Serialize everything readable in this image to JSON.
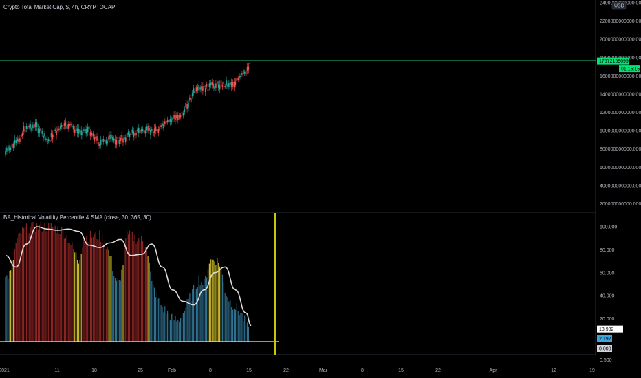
{
  "price_pane": {
    "title": "Crypto Total Market Cap, $, 4h, CRYPTOCAP",
    "currency_badge": "USD",
    "last_price_label": "1767215969967.181",
    "countdown_label": "01:15:15",
    "colors": {
      "up": "#26a69a",
      "down": "#ef5350",
      "price_line": "#26c281",
      "tag": "#00e676"
    }
  },
  "indicator_pane": {
    "title": "BA_Historical Volatility Percentile & SMA (close, 30, 365, 30)",
    "sma_value_label": "13.982",
    "hvp_value_label": "2.192",
    "zero_label": "0.000",
    "colors": {
      "sma": "#e0dcdc",
      "low": "#2f6f8f",
      "mid": "#c8b828",
      "high": "#8b2323",
      "cursor": "#c8c800"
    }
  },
  "time_axis": {
    "labels": [
      "2021",
      "11",
      "18",
      "25",
      "Feb",
      "8",
      "15",
      "22",
      "Mar",
      "8",
      "15",
      "22",
      "Apr",
      "12",
      "19"
    ]
  },
  "chart_data": [
    {
      "type": "line",
      "series": [
        {
          "x": [
            "2021-01-04",
            "2021-01-06",
            "2021-01-08",
            "2021-01-10",
            "2021-01-12",
            "2021-01-14",
            "2021-01-16",
            "2021-01-18",
            "2021-01-20",
            "2021-01-22",
            "2021-01-24",
            "2021-01-26",
            "2021-01-28",
            "2021-01-30",
            "2021-02-01",
            "2021-02-03",
            "2021-02-05",
            "2021-02-07",
            "2021-02-09",
            "2021-02-11",
            "2021-02-13",
            "2021-02-15",
            "2021-02-17",
            "2021-02-19",
            "2021-02-20"
          ],
          "values": [
            760000000000,
            860000000000,
            1040000000000,
            1050000000000,
            880000000000,
            1010000000000,
            1060000000000,
            990000000000,
            1010000000000,
            860000000000,
            910000000000,
            890000000000,
            970000000000,
            1000000000000,
            990000000000,
            1040000000000,
            1130000000000,
            1190000000000,
            1420000000000,
            1460000000000,
            1500000000000,
            1510000000000,
            1520000000000,
            1650000000000,
            1767215969967
          ]
        }
      ],
      "y_ticks": [
        "200000000000.000",
        "400000000000.000",
        "600000000000.000",
        "800000000000.000",
        "1000000000000.000",
        "1200000000000.000",
        "1400000000000.000",
        "1600000000000.000",
        "1800000000000.000",
        "2000000000000.000",
        "2200000000000.000",
        "2400000000000.000"
      ],
      "ylim": [
        0,
        2400000000000
      ]
    },
    {
      "type": "bar",
      "series": [
        {
          "x": [
            "2021-01-04",
            "2021-01-05",
            "2021-01-06",
            "2021-01-07",
            "2021-01-08",
            "2021-01-09",
            "2021-01-10",
            "2021-01-11",
            "2021-01-12",
            "2021-01-13",
            "2021-01-14",
            "2021-01-15",
            "2021-01-16",
            "2021-01-17",
            "2021-01-18",
            "2021-01-19",
            "2021-01-20",
            "2021-01-21",
            "2021-01-22",
            "2021-01-23",
            "2021-01-24",
            "2021-01-25",
            "2021-01-26",
            "2021-01-27",
            "2021-01-28",
            "2021-01-29",
            "2021-01-30",
            "2021-01-31",
            "2021-02-01",
            "2021-02-02",
            "2021-02-03",
            "2021-02-04",
            "2021-02-05",
            "2021-02-06",
            "2021-02-07",
            "2021-02-08",
            "2021-02-09",
            "2021-02-10",
            "2021-02-11",
            "2021-02-12",
            "2021-02-13",
            "2021-02-14",
            "2021-02-15",
            "2021-02-16",
            "2021-02-17",
            "2021-02-18",
            "2021-02-19",
            "2021-02-20"
          ],
          "values": [
            55,
            60,
            85,
            95,
            98,
            99,
            100,
            100,
            100,
            100,
            98,
            96,
            90,
            80,
            70,
            90,
            92,
            92,
            92,
            88,
            75,
            55,
            50,
            92,
            92,
            90,
            88,
            85,
            50,
            40,
            30,
            25,
            20,
            18,
            25,
            35,
            45,
            55,
            50,
            70,
            72,
            68,
            45,
            35,
            30,
            25,
            15,
            2.192
          ]
        },
        {
          "x": [
            "2021-01-04",
            "2021-01-06",
            "2021-01-08",
            "2021-01-10",
            "2021-01-12",
            "2021-01-14",
            "2021-01-16",
            "2021-01-18",
            "2021-01-20",
            "2021-01-22",
            "2021-01-24",
            "2021-01-26",
            "2021-01-28",
            "2021-01-30",
            "2021-02-01",
            "2021-02-03",
            "2021-02-05",
            "2021-02-07",
            "2021-02-09",
            "2021-02-11",
            "2021-02-13",
            "2021-02-15",
            "2021-02-17",
            "2021-02-19",
            "2021-02-20"
          ],
          "values": [
            75,
            65,
            85,
            100,
            98,
            97,
            98,
            96,
            84,
            82,
            86,
            89,
            75,
            76,
            85,
            65,
            45,
            35,
            32,
            45,
            60,
            65,
            45,
            25,
            13.982
          ]
        }
      ],
      "y_ticks": [
        "0.000",
        "20.000",
        "40.000",
        "60.000",
        "80.000",
        "100.000"
      ],
      "extra_ticks": [
        "0.500"
      ],
      "ylim": [
        -10,
        110
      ]
    }
  ]
}
